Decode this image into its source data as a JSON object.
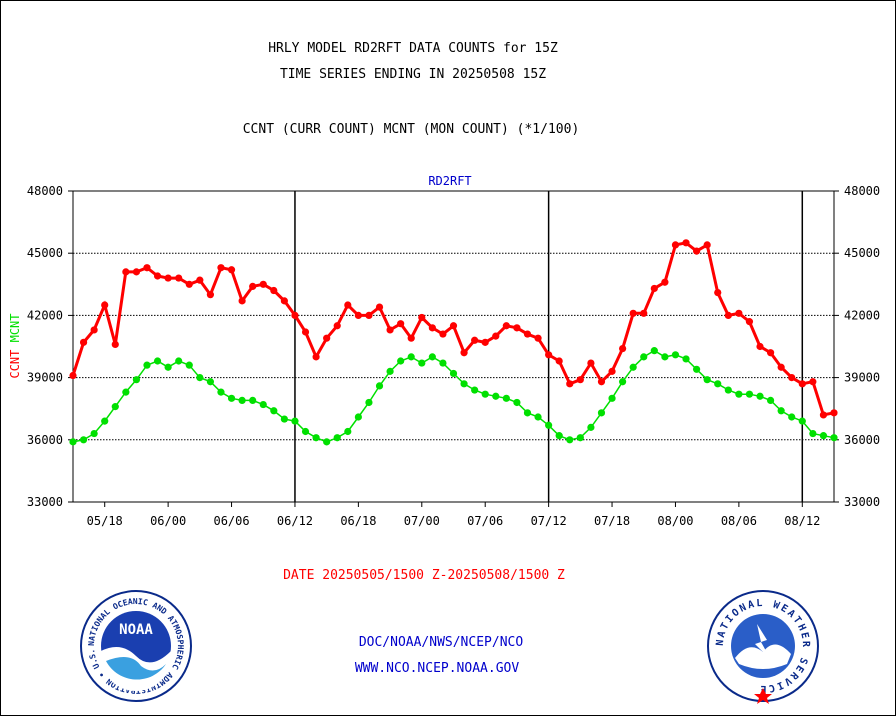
{
  "header": {
    "title_line1": "HRLY MODEL RD2RFT DATA COUNTS for 15Z",
    "title_line2": "TIME SERIES ENDING IN 20250508 15Z",
    "subtitle": "CCNT (CURR COUNT) MCNT (MON COUNT) (*1/100)"
  },
  "footer": {
    "date_range": "DATE 20250505/1500 Z-20250508/1500 Z",
    "link1": "DOC/NOAA/NWS/NCEP/NCO",
    "link2": "WWW.NCO.NCEP.NOAA.GOV"
  },
  "logos": {
    "left_text": "NOAA",
    "left_ring": "NATIONAL OCEANIC AND ATMOSPHERIC ADMINISTRATION • U.S. DEPARTMENT OF COMMERCE •",
    "right_ring": "NATIONAL WEATHER SERVICE"
  },
  "colors": {
    "ccnt": "#ff0000",
    "mcnt": "#00e000",
    "grid": "#000000",
    "label_blue": "#0000cc",
    "label_red": "#ff0000"
  },
  "chart_data": {
    "type": "line",
    "title": "RD2RFT",
    "ylabel_parts": [
      "CCNT",
      "MCNT"
    ],
    "ylim": [
      33000,
      48000
    ],
    "yticks": [
      33000,
      36000,
      39000,
      42000,
      45000,
      48000
    ],
    "ytick_labels": [
      "33000",
      "36000",
      "39000",
      "42000",
      "45000",
      "48000"
    ],
    "xtick_labels": [
      "05/18",
      "06/00",
      "06/06",
      "06/12",
      "06/18",
      "07/00",
      "07/06",
      "07/12",
      "07/18",
      "08/00",
      "08/06",
      "08/12"
    ],
    "xtick_hours": [
      "2025-05-05 18:00",
      "2025-05-06 00:00",
      "2025-05-06 06:00",
      "2025-05-06 12:00",
      "2025-05-06 18:00",
      "2025-05-07 00:00",
      "2025-05-07 06:00",
      "2025-05-07 12:00",
      "2025-05-07 18:00",
      "2025-05-08 00:00",
      "2025-05-08 06:00",
      "2025-05-08 12:00"
    ],
    "day_dividers": [
      "06/12",
      "07/12",
      "08/12"
    ],
    "x_start": "2025-05-05 15:00",
    "x_end": "2025-05-08 15:00",
    "grid": true,
    "series": [
      {
        "name": "CCNT",
        "values": [
          39100,
          40700,
          41300,
          42500,
          40600,
          44100,
          44100,
          44300,
          43900,
          43800,
          43800,
          43500,
          43700,
          43000,
          44300,
          44200,
          42700,
          43400,
          43500,
          43200,
          42700,
          42000,
          41200,
          40000,
          40900,
          41500,
          42500,
          42000,
          42000,
          42400,
          41300,
          41600,
          40900,
          41900,
          41400,
          41100,
          41500,
          40200,
          40800,
          40700,
          41000,
          41500,
          41400,
          41100,
          40900,
          40100,
          39800,
          38700,
          38900,
          39700,
          38800,
          39300,
          40400,
          42100,
          42100,
          43300,
          43600,
          45400,
          45500,
          45100,
          45400,
          43100,
          42000,
          42100,
          41700,
          40500,
          40200,
          39500,
          39000,
          38700,
          38800,
          37200,
          37300
        ]
      },
      {
        "name": "MCNT",
        "values": [
          35900,
          36000,
          36300,
          36900,
          37600,
          38300,
          38900,
          39600,
          39800,
          39500,
          39800,
          39600,
          39000,
          38800,
          38300,
          38000,
          37900,
          37900,
          37700,
          37400,
          37000,
          36900,
          36400,
          36100,
          35900,
          36100,
          36400,
          37100,
          37800,
          38600,
          39300,
          39800,
          40000,
          39700,
          40000,
          39700,
          39200,
          38700,
          38400,
          38200,
          38100,
          38000,
          37800,
          37300,
          37100,
          36700,
          36200,
          36000,
          36100,
          36600,
          37300,
          38000,
          38800,
          39500,
          40000,
          40300,
          40000,
          40100,
          39900,
          39400,
          38900,
          38700,
          38400,
          38200,
          38200,
          38100,
          37900,
          37400,
          37100,
          36900,
          36300,
          36200,
          36100
        ]
      }
    ]
  }
}
